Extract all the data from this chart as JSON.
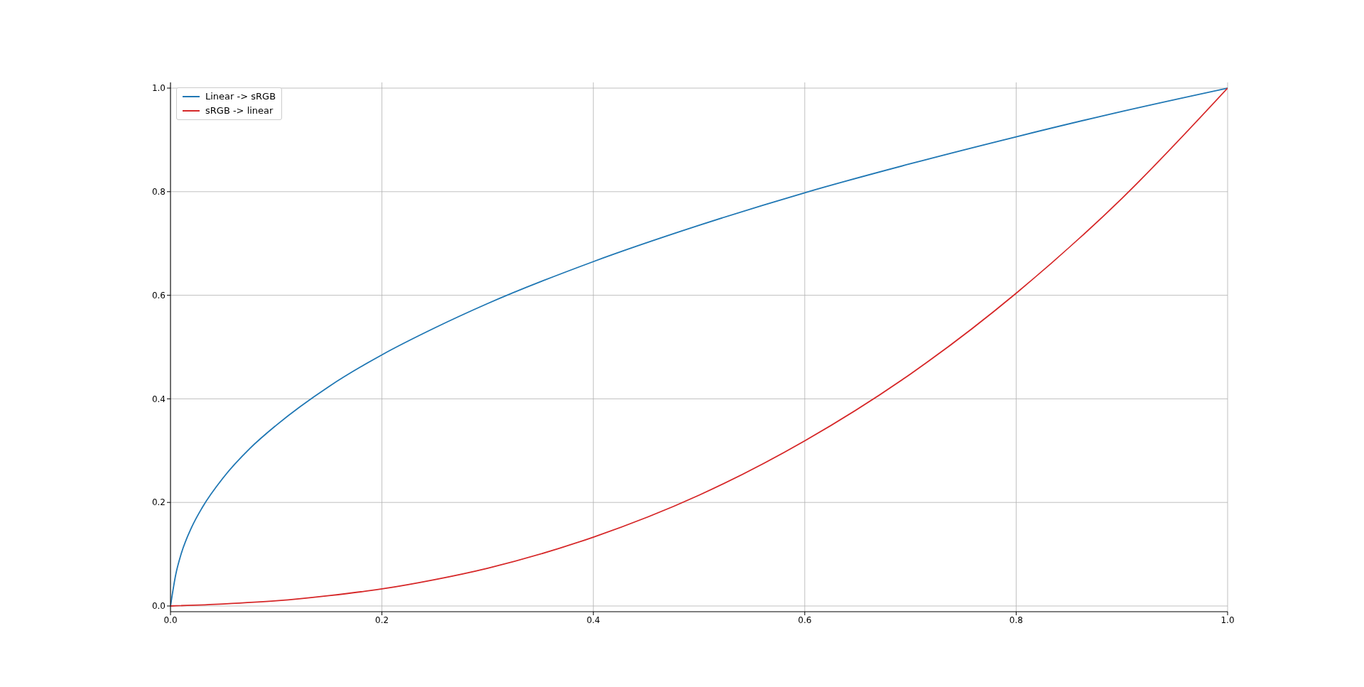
{
  "chart_data": {
    "type": "line",
    "xlim": [
      0,
      1
    ],
    "ylim": [
      -0.011,
      1.011
    ],
    "xticks": [
      {
        "value": 0,
        "label": "0.0"
      },
      {
        "value": 0.2,
        "label": "0.2"
      },
      {
        "value": 0.4,
        "label": "0.4"
      },
      {
        "value": 0.6,
        "label": "0.6"
      },
      {
        "value": 0.8,
        "label": "0.8"
      },
      {
        "value": 1,
        "label": "1.0"
      }
    ],
    "yticks": [
      {
        "value": 0,
        "label": "0.0"
      },
      {
        "value": 0.2,
        "label": "0.2"
      },
      {
        "value": 0.4,
        "label": "0.4"
      },
      {
        "value": 0.6,
        "label": "0.6"
      },
      {
        "value": 0.8,
        "label": "0.8"
      },
      {
        "value": 1,
        "label": "1.0"
      }
    ],
    "grid": true,
    "legend": "top left",
    "series": [
      {
        "name": "Linear -> sRGB",
        "color": "#1f77b4",
        "x": [
          0,
          0.005,
          0.01,
          0.02,
          0.03,
          0.05,
          0.075,
          0.1,
          0.15,
          0.2,
          0.25,
          0.3,
          0.4,
          0.5,
          0.6,
          0.7,
          0.8,
          0.9,
          1
        ],
        "values": [
          0,
          0.061,
          0.1,
          0.152,
          0.19,
          0.248,
          0.304,
          0.349,
          0.424,
          0.485,
          0.537,
          0.584,
          0.665,
          0.735,
          0.798,
          0.854,
          0.906,
          0.955,
          1
        ]
      },
      {
        "name": "sRGB -> linear",
        "color": "#d62728",
        "x": [
          0,
          0.05,
          0.1,
          0.15,
          0.2,
          0.25,
          0.3,
          0.4,
          0.5,
          0.6,
          0.7,
          0.8,
          0.9,
          1
        ],
        "values": [
          0,
          0.004,
          0.01,
          0.02,
          0.033,
          0.051,
          0.073,
          0.133,
          0.214,
          0.319,
          0.448,
          0.604,
          0.787,
          1
        ]
      }
    ]
  }
}
